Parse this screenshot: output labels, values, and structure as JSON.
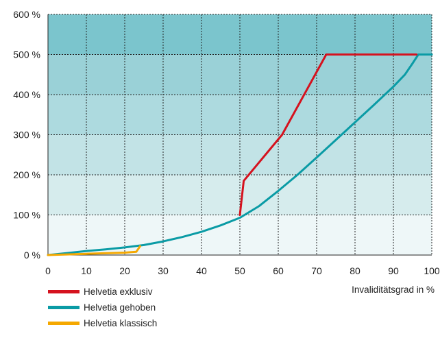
{
  "chart_data": {
    "type": "line",
    "xlabel": "Invaliditätsgrad in %",
    "ylabel": "",
    "xlim": [
      0,
      100
    ],
    "ylim": [
      0,
      600
    ],
    "x_ticks": [
      "0",
      "10",
      "20",
      "30",
      "40",
      "50",
      "60",
      "70",
      "80",
      "90",
      "100"
    ],
    "y_ticks": [
      "0 %",
      "100 %",
      "200 %",
      "300 %",
      "400 %",
      "500 %",
      "600 %"
    ],
    "grid": true,
    "legend_position": "bottom-left",
    "band_colors": [
      "#eef7f8",
      "#d6eced",
      "#c2e3e6",
      "#addadf",
      "#9ad1d7",
      "#7bc5cd"
    ],
    "series": [
      {
        "name": "Helvetia exklusiv",
        "color": "#d5121e",
        "points": [
          [
            50,
            100
          ],
          [
            51,
            185
          ],
          [
            61,
            300
          ],
          [
            72.5,
            500
          ],
          [
            96,
            500
          ]
        ]
      },
      {
        "name": "Helvetia gehoben",
        "color": "#0a9ba5",
        "points": [
          [
            0,
            0
          ],
          [
            5,
            5
          ],
          [
            10,
            10
          ],
          [
            15,
            14
          ],
          [
            20,
            19
          ],
          [
            25,
            25
          ],
          [
            30,
            34
          ],
          [
            35,
            45
          ],
          [
            40,
            58
          ],
          [
            45,
            74
          ],
          [
            50,
            93
          ],
          [
            55,
            122
          ],
          [
            60,
            160
          ],
          [
            65,
            200
          ],
          [
            70,
            243
          ],
          [
            75,
            287
          ],
          [
            80,
            331
          ],
          [
            85,
            375
          ],
          [
            90,
            420
          ],
          [
            93,
            450
          ],
          [
            95,
            478
          ],
          [
            96.5,
            500
          ],
          [
            100,
            500
          ]
        ]
      },
      {
        "name": "Helvetia klassisch",
        "color": "#f5a800",
        "points": [
          [
            0,
            0
          ],
          [
            10,
            3
          ],
          [
            20,
            6
          ],
          [
            23,
            8
          ],
          [
            24,
            22
          ]
        ]
      }
    ]
  }
}
